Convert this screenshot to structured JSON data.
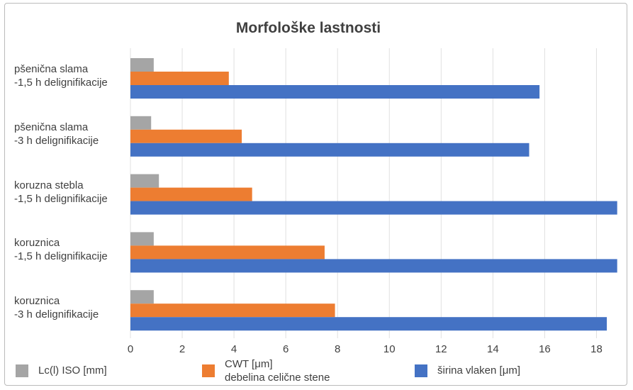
{
  "chart_data": {
    "type": "bar",
    "orientation": "horizontal",
    "title": "Morfološke lastnosti",
    "categories": [
      "pšenična slama\n-1,5 h delignifikacije",
      "pšenična slama\n-3 h delignifikacije",
      "koruzna stebla\n-1,5 h delignifikacije",
      "koruznica\n-1,5 h delignifikacije",
      "koruznica\n-3 h delignifikacije"
    ],
    "series": [
      {
        "name": "Lc(l) ISO [mm]",
        "color": "#a5a5a5",
        "values": [
          0.9,
          0.8,
          1.1,
          0.9,
          0.9
        ]
      },
      {
        "name": "CWT [μm]\ndebelina celične stene",
        "color": "#ed7d31",
        "values": [
          3.8,
          4.3,
          4.7,
          7.5,
          7.9
        ]
      },
      {
        "name": "širina vlaken [μm]",
        "color": "#4472c4",
        "values": [
          15.8,
          15.4,
          18.8,
          18.8,
          18.4
        ]
      }
    ],
    "xlim": [
      0,
      19
    ],
    "xticks": [
      0,
      2,
      4,
      6,
      8,
      10,
      12,
      14,
      16,
      18
    ],
    "grid": true,
    "legend": "bottom"
  }
}
